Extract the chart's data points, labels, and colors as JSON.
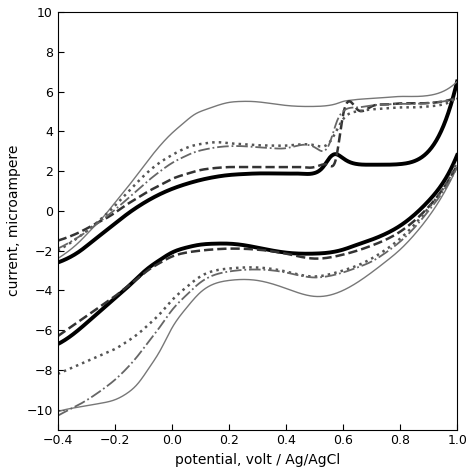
{
  "xlim": [
    -0.4,
    1.0
  ],
  "ylim": [
    -11,
    10
  ],
  "xlabel": "potential, volt / Ag/AgCl",
  "ylabel": "current, microampere",
  "xticks": [
    -0.4,
    -0.2,
    0.0,
    0.2,
    0.4,
    0.6,
    0.8,
    1.0
  ],
  "yticks": [
    -10,
    -8,
    -6,
    -4,
    -2,
    0,
    2,
    4,
    6,
    8,
    10
  ],
  "background_color": "#ffffff",
  "curves": [
    {
      "name": "thick_solid",
      "style": "solid",
      "color": "#000000",
      "linewidth": 2.8,
      "upper_x": [
        -0.4,
        -0.36,
        -0.32,
        -0.28,
        -0.24,
        -0.2,
        -0.16,
        -0.12,
        -0.08,
        -0.04,
        0.0,
        0.05,
        0.1,
        0.15,
        0.2,
        0.25,
        0.3,
        0.35,
        0.4,
        0.45,
        0.5,
        0.53,
        0.555,
        0.575,
        0.59,
        0.61,
        0.65,
        0.7,
        0.75,
        0.8,
        0.85,
        0.9,
        0.95,
        1.0
      ],
      "upper_y": [
        -2.6,
        -2.35,
        -2.0,
        -1.55,
        -1.1,
        -0.65,
        -0.2,
        0.2,
        0.55,
        0.85,
        1.1,
        1.35,
        1.55,
        1.7,
        1.8,
        1.85,
        1.88,
        1.88,
        1.87,
        1.87,
        1.9,
        2.2,
        2.7,
        2.85,
        2.75,
        2.55,
        2.35,
        2.32,
        2.32,
        2.35,
        2.5,
        3.0,
        4.2,
        6.5
      ],
      "lower_x": [
        -0.4,
        -0.36,
        -0.32,
        -0.28,
        -0.24,
        -0.2,
        -0.16,
        -0.12,
        -0.08,
        -0.04,
        0.0,
        0.05,
        0.1,
        0.15,
        0.2,
        0.25,
        0.3,
        0.4,
        0.5,
        0.55,
        0.6,
        0.65,
        0.7,
        0.75,
        0.8,
        0.85,
        0.9,
        0.95,
        1.0
      ],
      "lower_y": [
        -6.7,
        -6.35,
        -5.9,
        -5.4,
        -4.9,
        -4.4,
        -3.9,
        -3.35,
        -2.85,
        -2.45,
        -2.1,
        -1.85,
        -1.7,
        -1.65,
        -1.65,
        -1.72,
        -1.85,
        -2.1,
        -2.15,
        -2.1,
        -1.95,
        -1.7,
        -1.45,
        -1.15,
        -0.75,
        -0.2,
        0.5,
        1.4,
        2.8
      ]
    },
    {
      "name": "thin_solid",
      "style": "solid",
      "color": "#777777",
      "linewidth": 1.0,
      "upper_x": [
        -0.4,
        -0.36,
        -0.32,
        -0.28,
        -0.24,
        -0.2,
        -0.16,
        -0.12,
        -0.08,
        -0.04,
        0.0,
        0.04,
        0.08,
        0.12,
        0.16,
        0.2,
        0.24,
        0.28,
        0.32,
        0.4,
        0.5,
        0.55,
        0.58,
        0.6,
        0.62,
        0.65,
        0.7,
        0.75,
        0.8,
        0.85,
        0.9,
        0.95,
        1.0
      ],
      "upper_y": [
        -2.4,
        -2.0,
        -1.5,
        -0.9,
        -0.3,
        0.4,
        1.1,
        1.85,
        2.6,
        3.3,
        3.9,
        4.4,
        4.85,
        5.1,
        5.3,
        5.45,
        5.5,
        5.5,
        5.45,
        5.3,
        5.25,
        5.3,
        5.4,
        5.5,
        5.55,
        5.6,
        5.65,
        5.7,
        5.75,
        5.75,
        5.8,
        6.0,
        6.5
      ],
      "lower_x": [
        -0.4,
        -0.36,
        -0.32,
        -0.28,
        -0.24,
        -0.2,
        -0.16,
        -0.12,
        -0.08,
        -0.04,
        0.0,
        0.05,
        0.1,
        0.2,
        0.3,
        0.4,
        0.5,
        0.55,
        0.6,
        0.65,
        0.7,
        0.75,
        0.8,
        0.85,
        0.9,
        0.95,
        1.0
      ],
      "lower_y": [
        -10.1,
        -9.95,
        -9.85,
        -9.75,
        -9.65,
        -9.5,
        -9.2,
        -8.7,
        -7.9,
        -7.0,
        -5.9,
        -4.9,
        -4.1,
        -3.5,
        -3.5,
        -3.9,
        -4.3,
        -4.25,
        -4.0,
        -3.6,
        -3.1,
        -2.55,
        -1.95,
        -1.2,
        -0.3,
        0.8,
        2.2
      ]
    },
    {
      "name": "dashed",
      "style": "dashed",
      "color": "#333333",
      "linewidth": 1.8,
      "upper_x": [
        -0.4,
        -0.36,
        -0.32,
        -0.28,
        -0.24,
        -0.2,
        -0.16,
        -0.12,
        -0.08,
        -0.04,
        0.0,
        0.05,
        0.1,
        0.15,
        0.2,
        0.25,
        0.3,
        0.35,
        0.4,
        0.45,
        0.5,
        0.55,
        0.575,
        0.6,
        0.65,
        0.7,
        0.75,
        0.8,
        0.85,
        0.9,
        0.95,
        1.0
      ],
      "upper_y": [
        -1.5,
        -1.3,
        -1.05,
        -0.75,
        -0.45,
        -0.1,
        0.3,
        0.65,
        1.0,
        1.3,
        1.6,
        1.85,
        2.05,
        2.15,
        2.2,
        2.2,
        2.2,
        2.2,
        2.2,
        2.2,
        2.2,
        2.3,
        2.6,
        4.8,
        5.1,
        5.25,
        5.35,
        5.4,
        5.4,
        5.42,
        5.5,
        5.7
      ],
      "lower_x": [
        -0.4,
        -0.36,
        -0.32,
        -0.28,
        -0.24,
        -0.2,
        -0.16,
        -0.12,
        -0.08,
        -0.04,
        0.0,
        0.05,
        0.1,
        0.2,
        0.3,
        0.4,
        0.5,
        0.55,
        0.6,
        0.65,
        0.7,
        0.75,
        0.8,
        0.85,
        0.9,
        0.95,
        1.0
      ],
      "lower_y": [
        -6.3,
        -5.9,
        -5.5,
        -5.1,
        -4.7,
        -4.3,
        -3.85,
        -3.4,
        -2.95,
        -2.6,
        -2.3,
        -2.1,
        -2.0,
        -1.9,
        -1.95,
        -2.15,
        -2.4,
        -2.35,
        -2.2,
        -2.0,
        -1.75,
        -1.45,
        -1.05,
        -0.5,
        0.2,
        1.1,
        2.3
      ]
    },
    {
      "name": "dotted",
      "style": "dotted",
      "color": "#555555",
      "linewidth": 1.8,
      "upper_x": [
        -0.4,
        -0.36,
        -0.32,
        -0.28,
        -0.24,
        -0.2,
        -0.16,
        -0.12,
        -0.08,
        -0.04,
        0.0,
        0.04,
        0.08,
        0.12,
        0.16,
        0.2,
        0.25,
        0.3,
        0.35,
        0.4,
        0.5,
        0.55,
        0.6,
        0.65,
        0.7,
        0.75,
        0.8,
        0.85,
        0.9,
        0.95,
        1.0
      ],
      "upper_y": [
        -2.0,
        -1.65,
        -1.25,
        -0.8,
        -0.3,
        0.25,
        0.85,
        1.45,
        2.0,
        2.45,
        2.8,
        3.1,
        3.3,
        3.4,
        3.45,
        3.4,
        3.35,
        3.3,
        3.28,
        3.28,
        3.3,
        3.4,
        4.6,
        5.0,
        5.1,
        5.15,
        5.2,
        5.2,
        5.25,
        5.35,
        5.7
      ],
      "lower_x": [
        -0.4,
        -0.36,
        -0.32,
        -0.28,
        -0.24,
        -0.2,
        -0.16,
        -0.12,
        -0.08,
        -0.04,
        0.0,
        0.05,
        0.1,
        0.2,
        0.3,
        0.4,
        0.5,
        0.55,
        0.6,
        0.65,
        0.7,
        0.75,
        0.8,
        0.85,
        0.9,
        0.95,
        1.0
      ],
      "lower_y": [
        -8.2,
        -7.95,
        -7.7,
        -7.45,
        -7.2,
        -6.95,
        -6.6,
        -6.2,
        -5.7,
        -5.15,
        -4.5,
        -3.85,
        -3.3,
        -2.9,
        -2.85,
        -3.05,
        -3.3,
        -3.2,
        -3.0,
        -2.75,
        -2.4,
        -1.95,
        -1.4,
        -0.7,
        0.15,
        1.1,
        2.5
      ]
    },
    {
      "name": "dashdot",
      "style": "dashdot",
      "color": "#666666",
      "linewidth": 1.3,
      "upper_x": [
        -0.4,
        -0.36,
        -0.32,
        -0.28,
        -0.24,
        -0.2,
        -0.16,
        -0.12,
        -0.08,
        -0.04,
        0.0,
        0.04,
        0.08,
        0.12,
        0.16,
        0.2,
        0.25,
        0.3,
        0.35,
        0.4,
        0.5,
        0.55,
        0.58,
        0.6,
        0.65,
        0.7,
        0.75,
        0.8,
        0.85,
        0.9,
        0.95,
        1.0
      ],
      "upper_y": [
        -1.9,
        -1.6,
        -1.25,
        -0.85,
        -0.4,
        0.05,
        0.55,
        1.05,
        1.55,
        2.0,
        2.4,
        2.7,
        2.95,
        3.1,
        3.2,
        3.25,
        3.25,
        3.2,
        3.15,
        3.15,
        3.2,
        3.3,
        4.55,
        5.0,
        5.2,
        5.3,
        5.35,
        5.38,
        5.38,
        5.42,
        5.5,
        5.65
      ],
      "lower_x": [
        -0.4,
        -0.36,
        -0.32,
        -0.28,
        -0.24,
        -0.2,
        -0.16,
        -0.12,
        -0.08,
        -0.04,
        0.0,
        0.05,
        0.1,
        0.2,
        0.3,
        0.4,
        0.5,
        0.55,
        0.6,
        0.65,
        0.7,
        0.75,
        0.8,
        0.85,
        0.9,
        0.95,
        1.0
      ],
      "lower_y": [
        -10.3,
        -10.0,
        -9.7,
        -9.35,
        -8.95,
        -8.5,
        -7.95,
        -7.3,
        -6.55,
        -5.8,
        -5.0,
        -4.25,
        -3.6,
        -3.05,
        -2.95,
        -3.1,
        -3.35,
        -3.28,
        -3.1,
        -2.85,
        -2.55,
        -2.1,
        -1.55,
        -0.85,
        0.0,
        0.95,
        2.2
      ]
    }
  ]
}
